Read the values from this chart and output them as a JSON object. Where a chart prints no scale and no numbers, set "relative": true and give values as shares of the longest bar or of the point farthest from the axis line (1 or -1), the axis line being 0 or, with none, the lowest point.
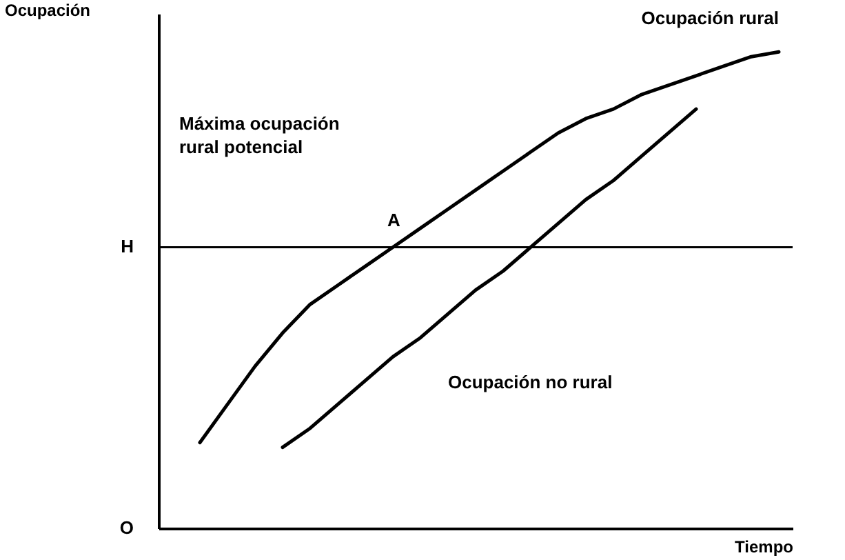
{
  "chart_data": {
    "type": "line",
    "relative": true,
    "xlabel": "Tiempo",
    "ylabel": "Ocupación",
    "categories": [
      null,
      null,
      null,
      null,
      null,
      null,
      null,
      null,
      null,
      null,
      null,
      null,
      null,
      null,
      null,
      null,
      null,
      null,
      null,
      null,
      null,
      null,
      null
    ],
    "series": [
      {
        "name": "Ocupación rural",
        "color": "#000000",
        "values": [
          null,
          0.18,
          0.26,
          0.34,
          0.41,
          0.47,
          0.51,
          0.55,
          0.59,
          0.63,
          0.67,
          0.71,
          0.75,
          0.79,
          0.83,
          0.86,
          0.88,
          0.91,
          0.93,
          0.95,
          0.97,
          0.99,
          1.0
        ]
      },
      {
        "name": "Ocupación no rural",
        "color": "#000000",
        "values": [
          null,
          null,
          null,
          null,
          0.17,
          0.21,
          0.26,
          0.31,
          0.36,
          0.4,
          0.45,
          0.5,
          0.54,
          0.59,
          0.64,
          0.69,
          0.73,
          0.78,
          0.83,
          0.88,
          null,
          null,
          null
        ]
      }
    ],
    "ref_lines": [
      {
        "axis": "y",
        "value": 0.59,
        "label": "H",
        "color": "#000000"
      }
    ],
    "annotations": [
      "Máxima ocupación\nrural potencial",
      "A",
      "O"
    ],
    "marker": "none",
    "line_style": "solid"
  }
}
